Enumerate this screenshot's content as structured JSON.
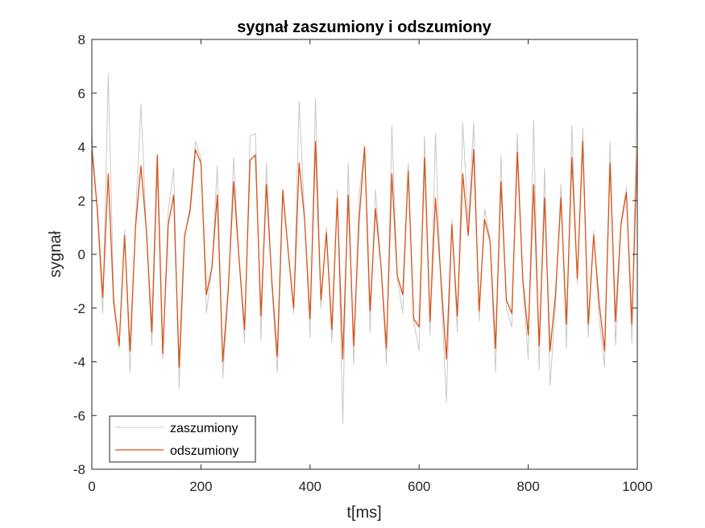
{
  "chart_data": {
    "type": "line",
    "title": "sygnał zaszumiony i odszumiony",
    "xlabel": "t[ms]",
    "ylabel": "sygnał",
    "xlim": [
      0,
      1000
    ],
    "ylim": [
      -8,
      8
    ],
    "x_ticks": [
      0,
      200,
      400,
      600,
      800,
      1000
    ],
    "y_ticks": [
      -8,
      -6,
      -4,
      -2,
      0,
      2,
      4,
      6,
      8
    ],
    "grid": false,
    "legend": {
      "position": "bottom-left"
    },
    "series": [
      {
        "name": "zaszumiony",
        "color": "#c8c8c8",
        "x": [
          0,
          10,
          20,
          30,
          40,
          50,
          60,
          70,
          80,
          90,
          100,
          110,
          120,
          130,
          140,
          150,
          160,
          170,
          180,
          190,
          200,
          210,
          220,
          230,
          240,
          250,
          260,
          270,
          280,
          290,
          300,
          310,
          320,
          330,
          340,
          350,
          360,
          370,
          380,
          390,
          400,
          410,
          420,
          430,
          440,
          450,
          460,
          470,
          480,
          490,
          500,
          510,
          520,
          530,
          540,
          550,
          560,
          570,
          580,
          590,
          600,
          610,
          620,
          630,
          640,
          650,
          660,
          670,
          680,
          690,
          700,
          710,
          720,
          730,
          740,
          750,
          760,
          770,
          780,
          790,
          800,
          810,
          820,
          830,
          840,
          850,
          860,
          870,
          880,
          890,
          900,
          910,
          920,
          930,
          940,
          950,
          960,
          970,
          980,
          990,
          1000
        ],
        "y": [
          4.6,
          1.5,
          -2.2,
          6.7,
          -1.5,
          -3.5,
          0.9,
          -4.4,
          1.2,
          5.6,
          0.8,
          -3.4,
          3.1,
          -3.9,
          1.6,
          3.2,
          -5.0,
          0.6,
          1.8,
          4.2,
          3.6,
          -2.2,
          -0.5,
          3.3,
          -4.6,
          -1.5,
          3.6,
          -0.2,
          -3.3,
          4.4,
          4.5,
          -3.2,
          3.4,
          -1.2,
          -4.4,
          2.2,
          0.1,
          -2.2,
          5.7,
          1.4,
          -3.1,
          5.8,
          -2.0,
          1.0,
          -3.3,
          2.4,
          -6.3,
          3.4,
          -4.1,
          2.2,
          4.0,
          -2.9,
          2.4,
          -0.4,
          -4.1,
          4.8,
          -0.9,
          -2.2,
          3.4,
          -2.5,
          -3.6,
          4.4,
          -3.0,
          4.5,
          -1.3,
          -5.5,
          1.3,
          -2.9,
          4.9,
          1.2,
          4.9,
          -2.5,
          1.7,
          0.6,
          -4.4,
          3.7,
          -2.0,
          -2.7,
          4.5,
          -1.1,
          -3.9,
          5.0,
          -4.3,
          3.2,
          -4.9,
          -1.9,
          2.6,
          -3.5,
          4.8,
          -1.1,
          4.7,
          -3.1,
          0.9,
          -2.4,
          -4.2,
          4.2,
          -3.4,
          1.2,
          2.5,
          -3.3,
          6.6
        ]
      },
      {
        "name": "odszumiony",
        "color": "#d95319",
        "x": [
          0,
          10,
          20,
          30,
          40,
          50,
          60,
          70,
          80,
          90,
          100,
          110,
          120,
          130,
          140,
          150,
          160,
          170,
          180,
          190,
          200,
          210,
          220,
          230,
          240,
          250,
          260,
          270,
          280,
          290,
          300,
          310,
          320,
          330,
          340,
          350,
          360,
          370,
          380,
          390,
          400,
          410,
          420,
          430,
          440,
          450,
          460,
          470,
          480,
          490,
          500,
          510,
          520,
          530,
          540,
          550,
          560,
          570,
          580,
          590,
          600,
          610,
          620,
          630,
          640,
          650,
          660,
          670,
          680,
          690,
          700,
          710,
          720,
          730,
          740,
          750,
          760,
          770,
          780,
          790,
          800,
          810,
          820,
          830,
          840,
          850,
          860,
          870,
          880,
          890,
          900,
          910,
          920,
          930,
          940,
          950,
          960,
          970,
          980,
          990,
          1000
        ],
        "y": [
          3.9,
          1.7,
          -1.6,
          3.0,
          -1.8,
          -3.4,
          0.7,
          -3.6,
          1.0,
          3.3,
          0.9,
          -2.9,
          3.7,
          -3.7,
          1.1,
          2.2,
          -4.2,
          0.7,
          1.6,
          3.9,
          3.4,
          -1.5,
          -0.5,
          2.2,
          -4.0,
          -1.3,
          2.7,
          -0.2,
          -2.8,
          3.5,
          3.7,
          -2.3,
          2.6,
          -1.0,
          -3.8,
          2.4,
          0.1,
          -2.0,
          3.4,
          1.3,
          -2.4,
          4.2,
          -1.7,
          0.8,
          -2.8,
          2.1,
          -3.9,
          2.2,
          -3.4,
          1.3,
          4.0,
          -2.1,
          1.7,
          -0.4,
          -3.5,
          3.0,
          -0.8,
          -1.5,
          3.1,
          -2.4,
          -2.7,
          3.6,
          -2.5,
          2.1,
          -0.9,
          -3.9,
          1.1,
          -2.3,
          3.0,
          0.7,
          3.9,
          -2.1,
          1.3,
          0.5,
          -3.5,
          2.7,
          -1.7,
          -2.2,
          3.8,
          -0.9,
          -3.0,
          2.6,
          -3.4,
          2.1,
          -3.6,
          -1.5,
          2.1,
          -2.6,
          3.6,
          -0.9,
          4.2,
          -2.6,
          0.7,
          -1.8,
          -3.6,
          3.4,
          -2.5,
          1.1,
          2.3,
          -2.6,
          4.0
        ]
      }
    ]
  }
}
